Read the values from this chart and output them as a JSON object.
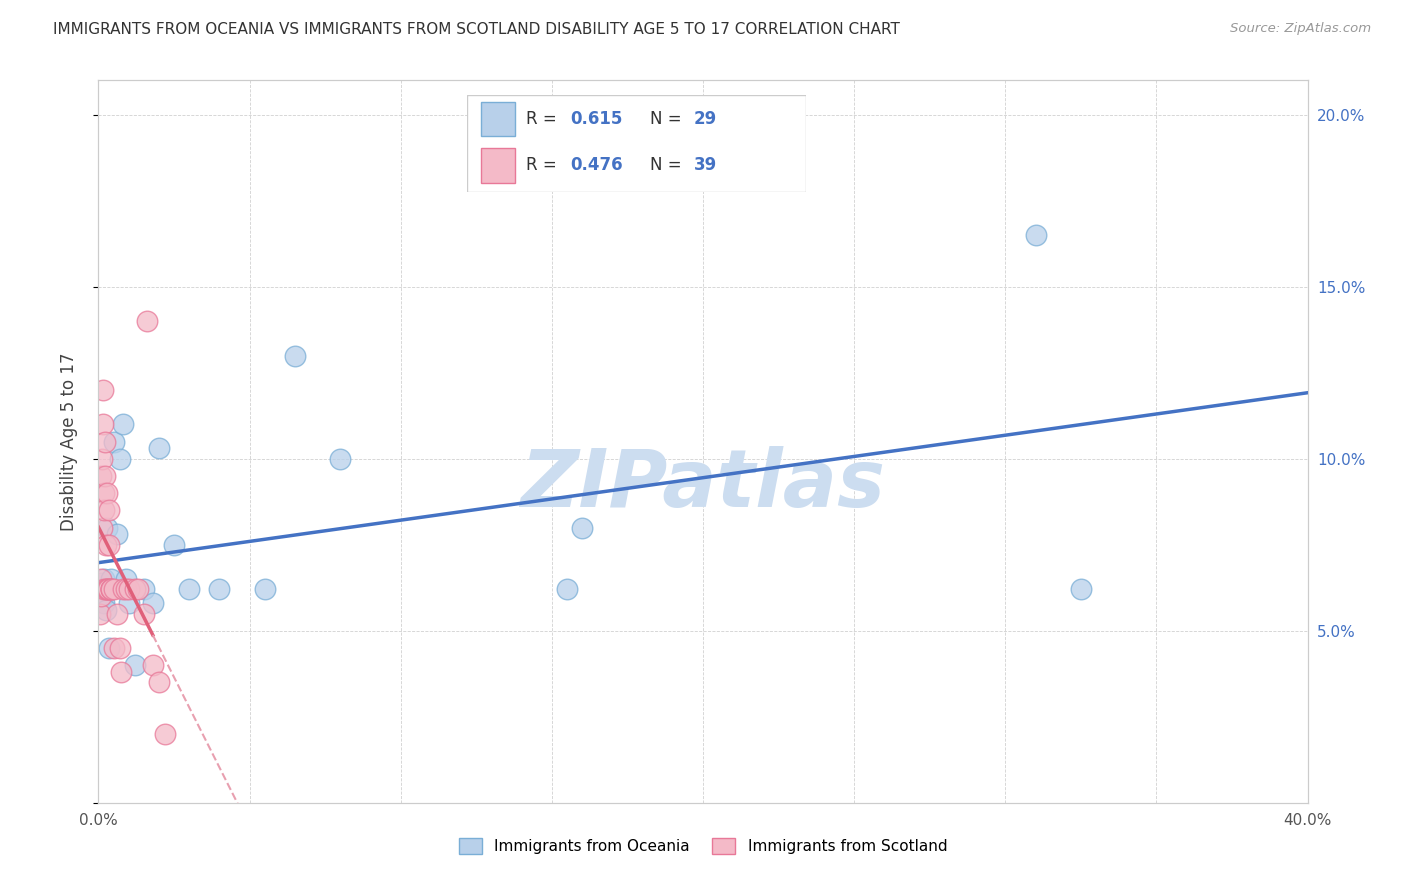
{
  "title": "IMMIGRANTS FROM OCEANIA VS IMMIGRANTS FROM SCOTLAND DISABILITY AGE 5 TO 17 CORRELATION CHART",
  "source": "Source: ZipAtlas.com",
  "ylabel": "Disability Age 5 to 17",
  "xlim": [
    0.0,
    0.4
  ],
  "ylim": [
    0.0,
    0.21
  ],
  "oceania_color": "#b8d0ea",
  "oceania_edge_color": "#7aaed6",
  "scotland_color": "#f4bac8",
  "scotland_edge_color": "#e87898",
  "trendline_oceania_color": "#4472c4",
  "trendline_scotland_color": "#e0607a",
  "trendline_scotland_dashed_color": "#e8a0b0",
  "R_oceania": "0.615",
  "N_oceania": "29",
  "R_scotland": "0.476",
  "N_scotland": "39",
  "watermark_text": "ZIPatlas",
  "watermark_color": "#ccddf0",
  "legend_R_color": "#4472c4",
  "legend_text_color": "#333333",
  "oceania_x": [
    0.0008,
    0.0012,
    0.0015,
    0.0018,
    0.002,
    0.0025,
    0.003,
    0.0035,
    0.004,
    0.005,
    0.006,
    0.007,
    0.008,
    0.009,
    0.01,
    0.012,
    0.015,
    0.018,
    0.02,
    0.025,
    0.03,
    0.04,
    0.055,
    0.065,
    0.08,
    0.155,
    0.16,
    0.31,
    0.325
  ],
  "oceania_y": [
    0.064,
    0.062,
    0.06,
    0.058,
    0.065,
    0.056,
    0.08,
    0.045,
    0.065,
    0.105,
    0.078,
    0.1,
    0.11,
    0.065,
    0.058,
    0.04,
    0.062,
    0.058,
    0.103,
    0.075,
    0.062,
    0.062,
    0.062,
    0.13,
    0.1,
    0.062,
    0.08,
    0.165,
    0.062
  ],
  "scotland_x": [
    0.0005,
    0.0007,
    0.001,
    0.001,
    0.0012,
    0.0013,
    0.0015,
    0.0016,
    0.0018,
    0.002,
    0.002,
    0.0022,
    0.0023,
    0.0025,
    0.0025,
    0.003,
    0.003,
    0.0032,
    0.0033,
    0.0035,
    0.0035,
    0.004,
    0.004,
    0.0042,
    0.005,
    0.005,
    0.006,
    0.007,
    0.0075,
    0.008,
    0.009,
    0.01,
    0.012,
    0.013,
    0.015,
    0.016,
    0.018,
    0.02,
    0.022
  ],
  "scotland_y": [
    0.055,
    0.065,
    0.06,
    0.095,
    0.08,
    0.1,
    0.11,
    0.12,
    0.09,
    0.062,
    0.085,
    0.095,
    0.105,
    0.062,
    0.075,
    0.062,
    0.09,
    0.062,
    0.062,
    0.075,
    0.085,
    0.062,
    0.062,
    0.062,
    0.062,
    0.045,
    0.055,
    0.045,
    0.038,
    0.062,
    0.062,
    0.062,
    0.062,
    0.062,
    0.055,
    0.14,
    0.04,
    0.035,
    0.02
  ]
}
